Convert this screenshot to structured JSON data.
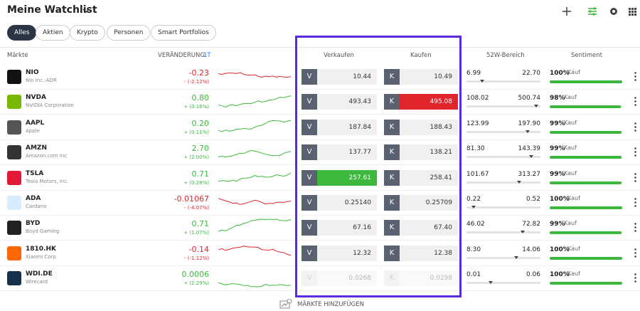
{
  "header": {
    "title": "Meine Watchlist"
  },
  "tabs": [
    "Alles",
    "Aktien",
    "Krypto",
    "Personen",
    "Smart Portfolios"
  ],
  "columns": {
    "markets": "Märkte",
    "change": "VERÄNDERUNG",
    "period": "1T",
    "sell": "Verkaufen",
    "buy": "Kaufen",
    "range": "52W-Bereich",
    "sentiment": "Sentiment"
  },
  "rows": [
    {
      "symbol": "NIO",
      "name": "Nio Inc.-ADR",
      "change": "-0.23",
      "change_pct": "- (-2.12%)",
      "sell_label": "V",
      "sell": "10.44",
      "buy_label": "K",
      "buy": "10.49",
      "low": "6.99",
      "high": "22.70",
      "sentiment": "100%",
      "sentiment_label": "Kauf"
    },
    {
      "symbol": "NVDA",
      "name": "NVIDIA Corporation",
      "change": "0.80",
      "change_pct": "+ (0.16%)",
      "sell_label": "V",
      "sell": "493.43",
      "buy_label": "K",
      "buy": "495.08",
      "low": "108.02",
      "high": "500.74",
      "sentiment": "98%",
      "sentiment_label": "Kauf"
    },
    {
      "symbol": "AAPL",
      "name": "Apple",
      "change": "0.20",
      "change_pct": "+ (0.11%)",
      "sell_label": "V",
      "sell": "187.84",
      "buy_label": "K",
      "buy": "188.43",
      "low": "123.99",
      "high": "197.90",
      "sentiment": "99%",
      "sentiment_label": "Kauf"
    },
    {
      "symbol": "AMZN",
      "name": "Amazon.com Inc",
      "change": "2.70",
      "change_pct": "+ (2.00%)",
      "sell_label": "V",
      "sell": "137.77",
      "buy_label": "K",
      "buy": "138.21",
      "low": "81.30",
      "high": "143.39",
      "sentiment": "99%",
      "sentiment_label": "Kauf"
    },
    {
      "symbol": "TSLA",
      "name": "Tesla Motors, Inc.",
      "change": "0.71",
      "change_pct": "+ (0.28%)",
      "sell_label": "V",
      "sell": "257.61",
      "buy_label": "K",
      "buy": "258.41",
      "low": "101.67",
      "high": "313.27",
      "sentiment": "99%",
      "sentiment_label": "Kauf"
    },
    {
      "symbol": "ADA",
      "name": "Cardano",
      "change": "-0.01067",
      "change_pct": "- (-4.07%)",
      "sell_label": "V",
      "sell": "0.25140",
      "buy_label": "K",
      "buy": "0.25709",
      "low": "0.22",
      "high": "0.52",
      "sentiment": "100%",
      "sentiment_label": "Kauf"
    },
    {
      "symbol": "BYD",
      "name": "Boyd Gaming",
      "change": "0.71",
      "change_pct": "+ (1.07%)",
      "sell_label": "V",
      "sell": "67.16",
      "buy_label": "K",
      "buy": "67.40",
      "low": "46.02",
      "high": "72.82",
      "sentiment": "99%",
      "sentiment_label": "Kauf"
    },
    {
      "symbol": "1810.HK",
      "name": "Xiaomi Corp",
      "change": "-0.14",
      "change_pct": "- (-1.12%)",
      "sell_label": "V",
      "sell": "12.32",
      "buy_label": "K",
      "buy": "12.38",
      "low": "8.30",
      "high": "14.06",
      "sentiment": "100%",
      "sentiment_label": "Kauf"
    },
    {
      "symbol": "WDI.DE",
      "name": "Wirecard",
      "change": "0.0006",
      "change_pct": "+ (2.29%)",
      "sell_label": "V",
      "sell": "0.0268",
      "buy_label": "K",
      "buy": "0.0298",
      "low": "0.01",
      "high": "0.06",
      "sentiment": "100%",
      "sentiment_label": "Kauf"
    }
  ],
  "footer": {
    "add": "MÄRKTE HINZUFÜGEN"
  }
}
